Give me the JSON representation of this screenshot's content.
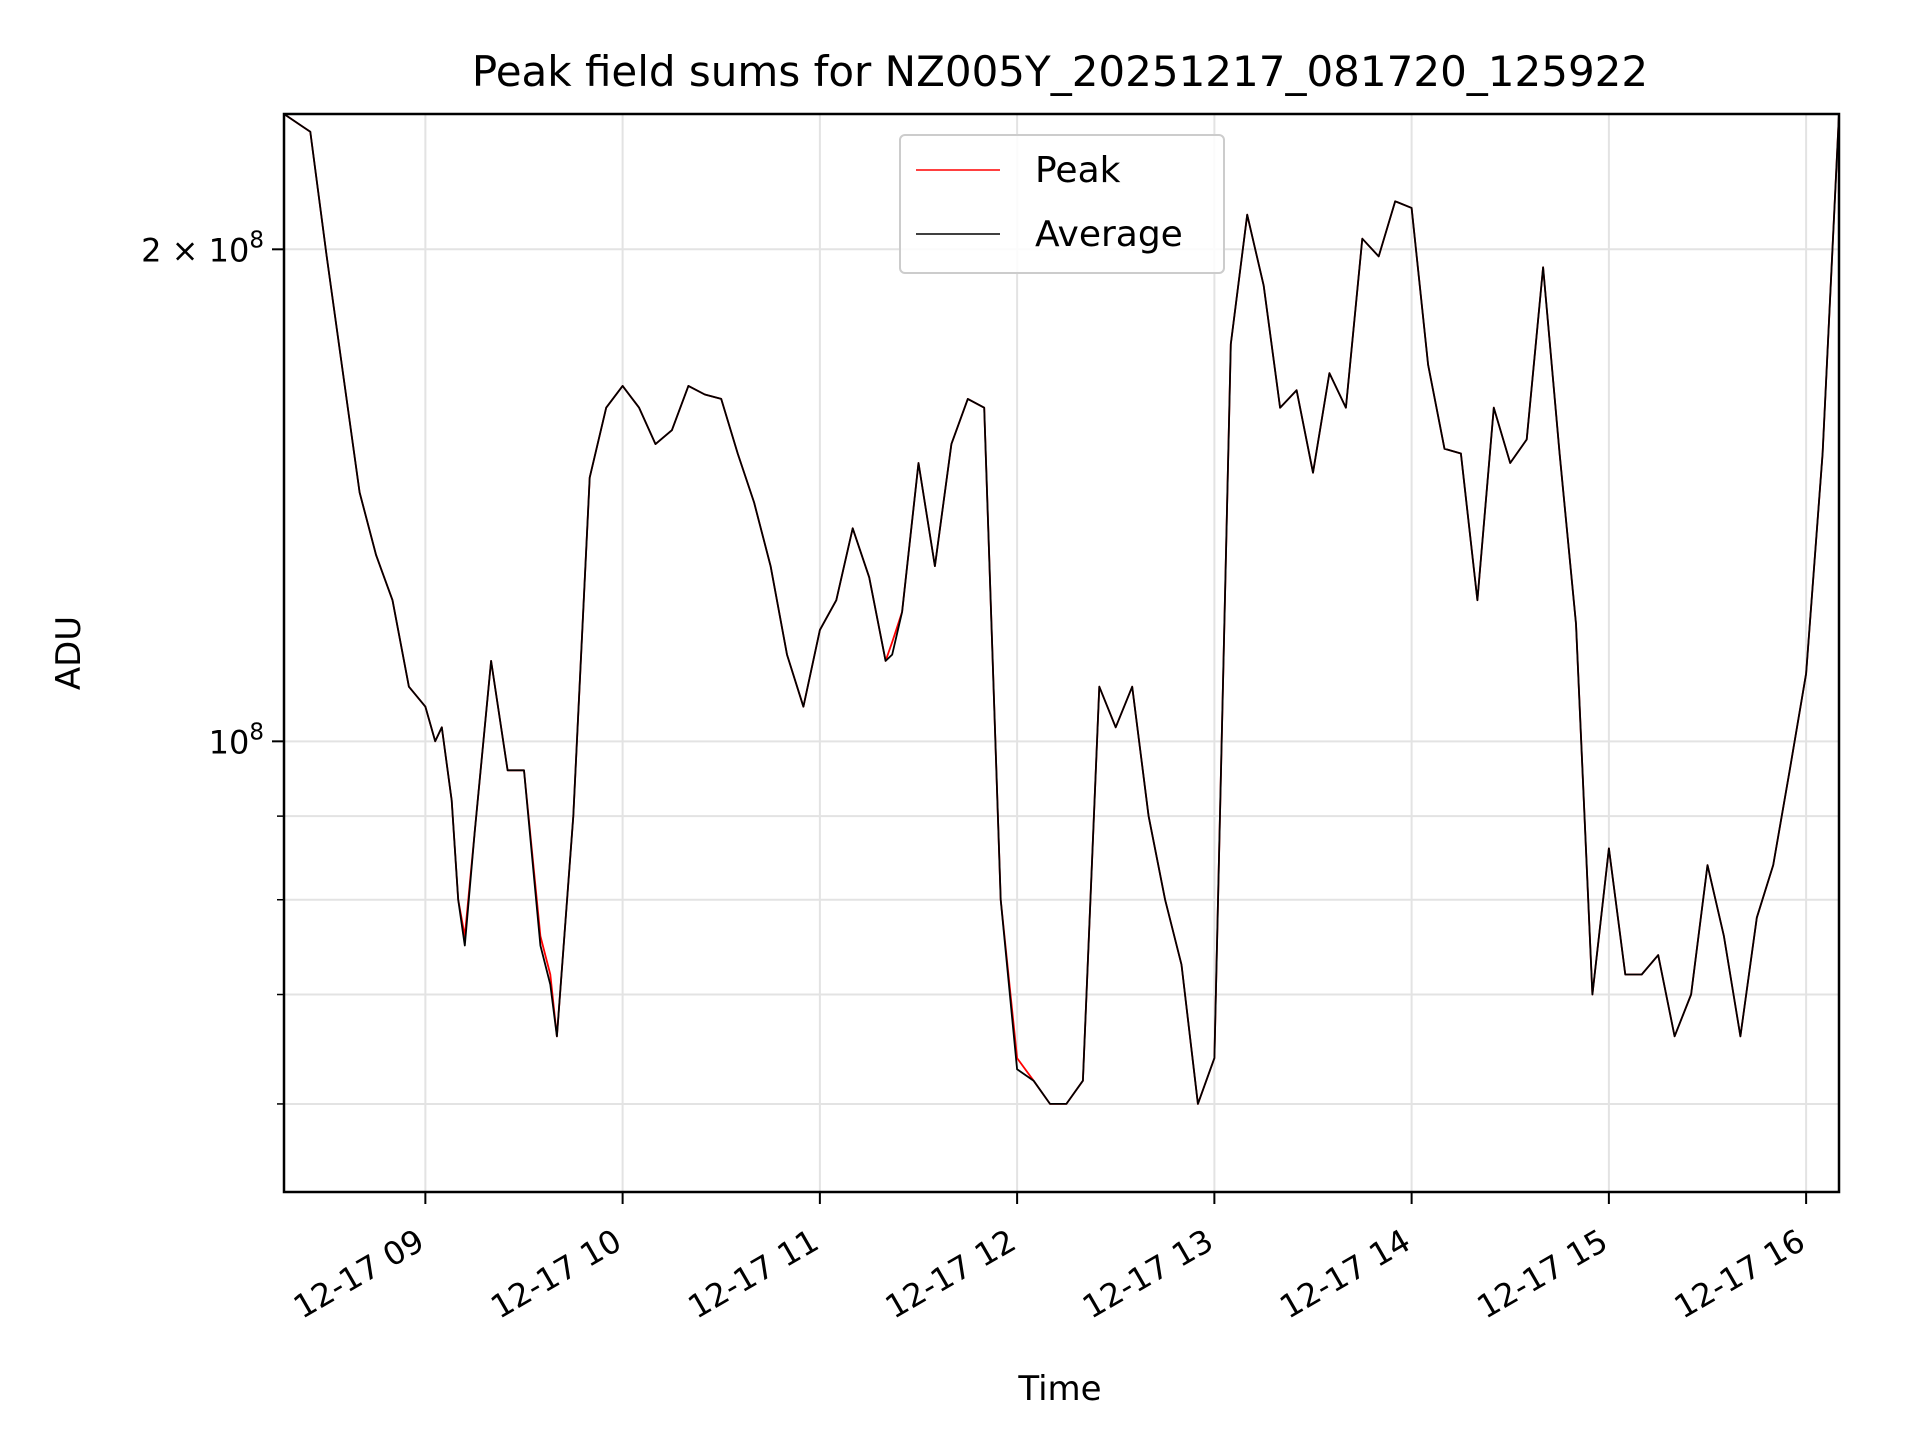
{
  "chart_data": {
    "type": "line",
    "title": "Peak field sums for NZ005Y_20251217_081720_125922",
    "xlabel": "Time",
    "ylabel": "ADU",
    "y_scale": "log",
    "x_range": [
      "2025-12-17 08:17",
      "2025-12-17 16:10"
    ],
    "ylim": [
      53000000,
      242000000
    ],
    "grid": true,
    "legend_position": "upper center",
    "x_ticks": [
      "12-17 09",
      "12-17 10",
      "12-17 11",
      "12-17 12",
      "12-17 13",
      "12-17 14",
      "12-17 15",
      "12-17 16"
    ],
    "y_tick_labels": [
      {
        "value": 200000000,
        "label": "2×10⁸",
        "base": "2 × 10",
        "exp": "8"
      },
      {
        "value": 100000000,
        "label": "10⁸",
        "base": "10",
        "exp": "8"
      }
    ],
    "x": [
      "08:17",
      "08:25",
      "08:30",
      "08:40",
      "08:45",
      "08:50",
      "08:55",
      "09:00",
      "09:03",
      "09:05",
      "09:08",
      "09:10",
      "09:12",
      "09:15",
      "09:20",
      "09:25",
      "09:30",
      "09:35",
      "09:38",
      "09:40",
      "09:45",
      "09:50",
      "09:55",
      "10:00",
      "10:05",
      "10:10",
      "10:15",
      "10:20",
      "10:25",
      "10:30",
      "10:35",
      "10:40",
      "10:45",
      "10:50",
      "10:55",
      "11:00",
      "11:05",
      "11:10",
      "11:15",
      "11:20",
      "11:22",
      "11:25",
      "11:30",
      "11:35",
      "11:40",
      "11:45",
      "11:50",
      "11:55",
      "12:00",
      "12:05",
      "12:10",
      "12:15",
      "12:20",
      "12:25",
      "12:30",
      "12:35",
      "12:40",
      "12:45",
      "12:50",
      "12:55",
      "13:00",
      "13:05",
      "13:10",
      "13:15",
      "13:20",
      "13:25",
      "13:30",
      "13:35",
      "13:40",
      "13:45",
      "13:50",
      "13:55",
      "14:00",
      "14:05",
      "14:10",
      "14:15",
      "14:20",
      "14:25",
      "14:30",
      "14:35",
      "14:40",
      "14:45",
      "14:50",
      "14:55",
      "15:00",
      "15:05",
      "15:10",
      "15:15",
      "15:20",
      "15:25",
      "15:30",
      "15:35",
      "15:40",
      "15:45",
      "15:50",
      "15:55",
      "16:00",
      "16:05",
      "16:10"
    ],
    "series": [
      {
        "name": "Peak",
        "color": "#ff0000",
        "values": [
          242,
          236,
          198,
          142,
          130,
          122,
          108,
          105,
          100,
          102,
          92,
          80,
          76,
          88,
          112,
          96,
          96,
          76,
          72,
          66,
          90,
          145,
          160,
          165,
          160,
          152,
          155,
          165,
          163,
          162,
          150,
          140,
          128,
          113,
          105,
          117,
          122,
          135,
          126,
          112,
          115,
          120,
          148,
          128,
          152,
          162,
          160,
          80,
          64,
          62,
          60,
          60,
          62,
          108,
          102,
          108,
          90,
          80,
          73,
          60,
          64,
          175,
          210,
          190,
          160,
          164,
          146,
          168,
          160,
          203,
          198,
          214,
          212,
          170,
          151,
          150,
          122,
          160,
          148,
          153,
          195,
          150,
          118,
          70,
          86,
          72,
          72,
          74,
          66,
          70,
          84,
          76,
          66,
          78,
          84,
          96,
          110,
          150,
          242
        ]
      },
      {
        "name": "Average",
        "color": "#000000",
        "values": [
          242,
          236,
          198,
          142,
          130,
          122,
          108,
          105,
          100,
          102,
          92,
          80,
          75,
          88,
          112,
          96,
          96,
          75,
          71,
          66,
          90,
          145,
          160,
          165,
          160,
          152,
          155,
          165,
          163,
          162,
          150,
          140,
          128,
          113,
          105,
          117,
          122,
          135,
          126,
          112,
          113,
          120,
          148,
          128,
          152,
          162,
          160,
          80,
          63,
          62,
          60,
          60,
          62,
          108,
          102,
          108,
          90,
          80,
          73,
          60,
          64,
          175,
          210,
          190,
          160,
          164,
          146,
          168,
          160,
          203,
          198,
          214,
          212,
          170,
          151,
          150,
          122,
          160,
          148,
          153,
          195,
          150,
          118,
          70,
          86,
          72,
          72,
          74,
          66,
          70,
          84,
          76,
          66,
          78,
          84,
          96,
          110,
          150,
          242
        ]
      }
    ],
    "values_unit_note": ""
  }
}
